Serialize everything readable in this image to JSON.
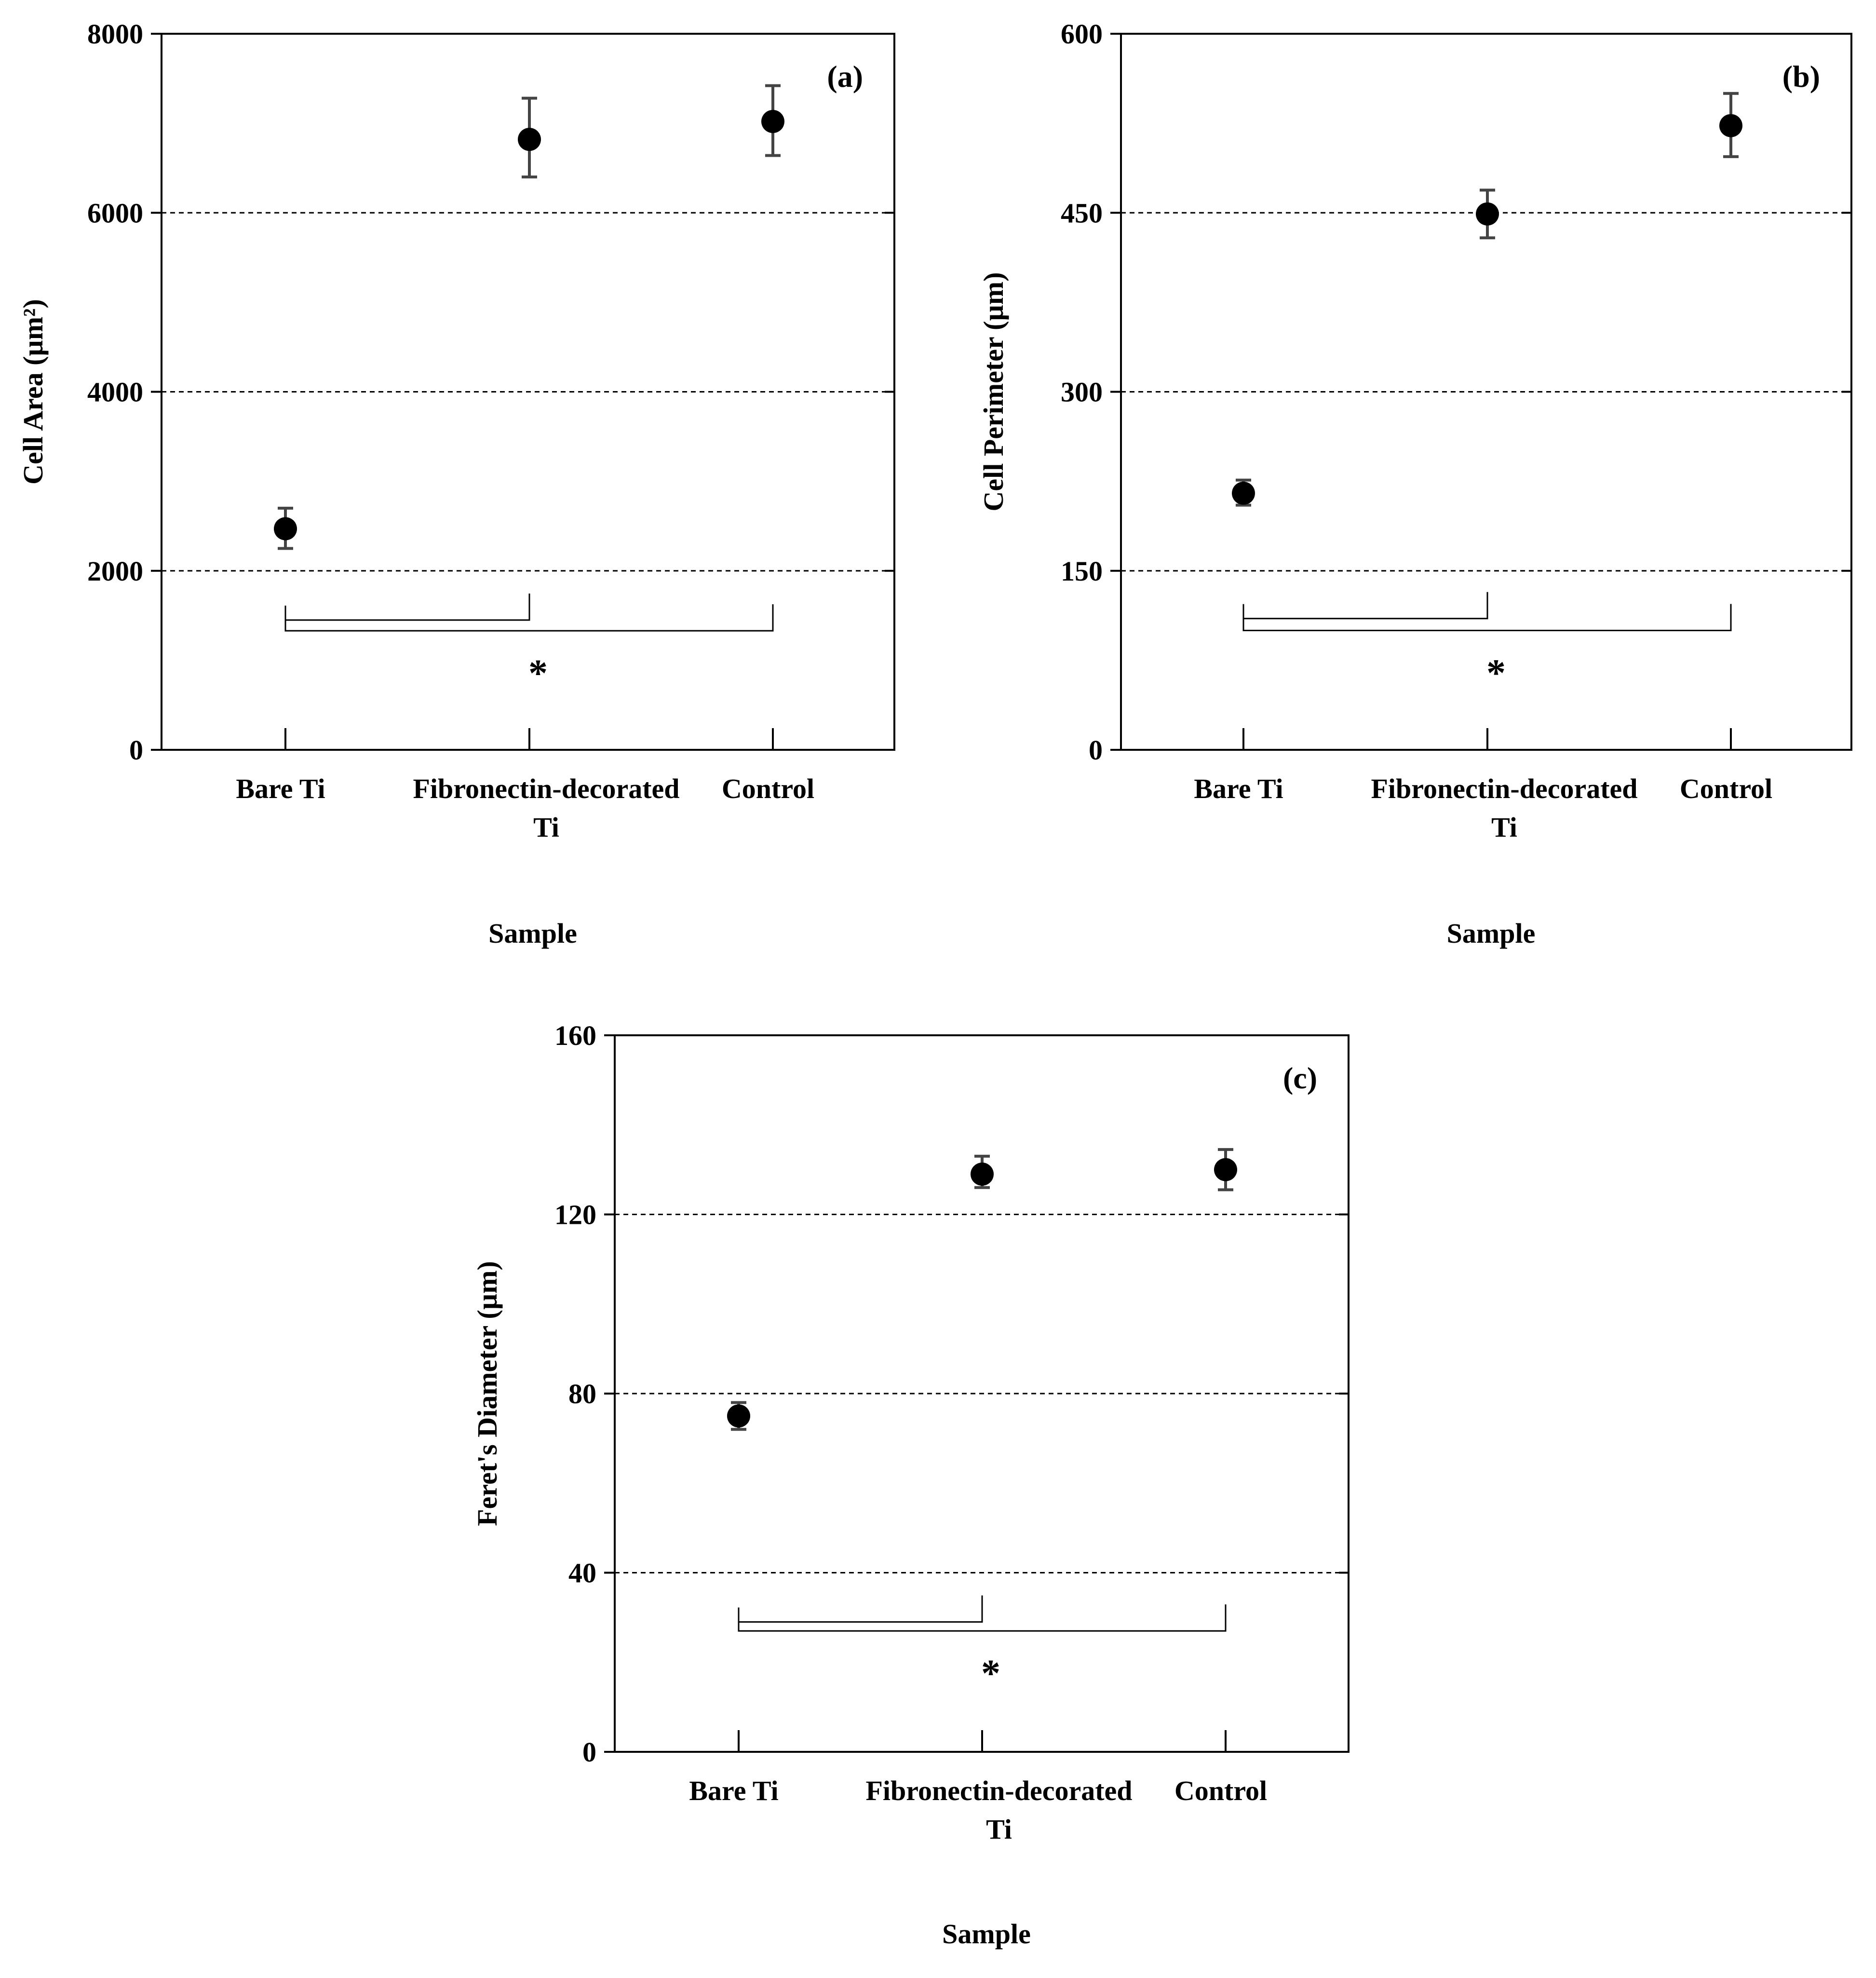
{
  "chart_data": [
    {
      "type": "scatter",
      "panel_label": "(a)",
      "categories": [
        "Bare Ti",
        "Fibronectin-decorated Ti",
        "Control"
      ],
      "category_lines": [
        [
          "Bare Ti"
        ],
        [
          "Fibronectin-decorated",
          "Ti"
        ],
        [
          "Control"
        ]
      ],
      "values": [
        2470,
        6820,
        7020
      ],
      "error": [
        [
          2250,
          2700
        ],
        [
          6400,
          7280
        ],
        [
          6640,
          7420
        ]
      ],
      "ylabel": "Cell Area (µm²)",
      "xlabel": "Sample",
      "ylim": [
        0,
        8000
      ],
      "yticks": [
        0,
        2000,
        4000,
        6000,
        8000
      ],
      "grid": "horizontal dashed",
      "significance": {
        "brackets": [
          [
            0,
            1
          ],
          [
            0,
            2
          ]
        ],
        "symbol": "*",
        "level": [
          1450,
          1330
        ]
      }
    },
    {
      "type": "scatter",
      "panel_label": "(b)",
      "categories": [
        "Bare Ti",
        "Fibronectin-decorated Ti",
        "Control"
      ],
      "category_lines": [
        [
          "Bare Ti"
        ],
        [
          "Fibronectin-decorated",
          "Ti"
        ],
        [
          "Control"
        ]
      ],
      "values": [
        215,
        449,
        523
      ],
      "error": [
        [
          205,
          226
        ],
        [
          429,
          469
        ],
        [
          497,
          550
        ]
      ],
      "ylabel": "Cell Perimeter (µm)",
      "xlabel": "Sample",
      "ylim": [
        0,
        600
      ],
      "yticks": [
        0,
        150,
        300,
        450,
        600
      ],
      "grid": "horizontal dashed",
      "significance": {
        "brackets": [
          [
            0,
            1
          ],
          [
            0,
            2
          ]
        ],
        "symbol": "*",
        "level": [
          110,
          100
        ]
      }
    },
    {
      "type": "scatter",
      "panel_label": "(c)",
      "categories": [
        "Bare Ti",
        "Fibronectin-decorated Ti",
        "Control"
      ],
      "category_lines": [
        [
          "Bare Ti"
        ],
        [
          "Fibronectin-decorated",
          "Ti"
        ],
        [
          "Control"
        ]
      ],
      "values": [
        75,
        129,
        130
      ],
      "error": [
        [
          72,
          78
        ],
        [
          126,
          133
        ],
        [
          125.5,
          134.5
        ]
      ],
      "ylabel": "Feret's Diameter (µm)",
      "xlabel": "Sample",
      "ylim": [
        0,
        160
      ],
      "yticks": [
        0,
        40,
        80,
        120,
        160
      ],
      "grid": "horizontal dashed",
      "significance": {
        "brackets": [
          [
            0,
            1
          ],
          [
            0,
            2
          ]
        ],
        "symbol": "*",
        "level": [
          29,
          27
        ]
      }
    }
  ]
}
